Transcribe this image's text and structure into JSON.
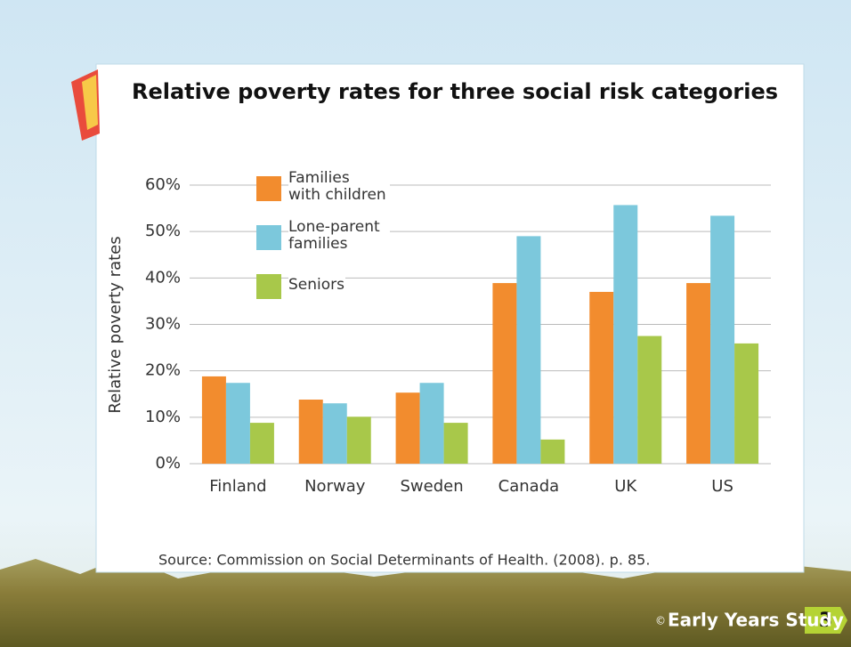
{
  "chart_data": {
    "type": "bar",
    "title": "Relative poverty rates for three social risk categories",
    "y_label": "Relative poverty rates",
    "categories": [
      "Finland",
      "Norway",
      "Sweden",
      "Canada",
      "UK",
      "US"
    ],
    "series": [
      {
        "name": "Families with children",
        "color": "#f28c2e",
        "values": [
          18.8,
          13.8,
          15.3,
          38.9,
          37.0,
          38.9
        ]
      },
      {
        "name": "Lone-parent families",
        "color": "#7cc8dc",
        "values": [
          17.4,
          13.0,
          17.4,
          49.0,
          55.7,
          53.4
        ]
      },
      {
        "name": "Seniors",
        "color": "#a8c84a",
        "values": [
          8.8,
          10.1,
          8.8,
          5.2,
          27.5,
          25.9
        ]
      }
    ],
    "ylim": [
      0,
      60
    ],
    "yticks": [
      {
        "value": 0,
        "label": "0%"
      },
      {
        "value": 10,
        "label": "10%"
      },
      {
        "value": 20,
        "label": "20%"
      },
      {
        "value": 30,
        "label": "30%"
      },
      {
        "value": 40,
        "label": "40%"
      },
      {
        "value": 50,
        "label": "50%"
      },
      {
        "value": 60,
        "label": "60%"
      }
    ],
    "grid": true,
    "source": "Source: Commission on Social Determinants of Health. (2008). p. 85."
  },
  "footer": {
    "copyright": "©",
    "text": "Early Years Study",
    "page": "3"
  }
}
